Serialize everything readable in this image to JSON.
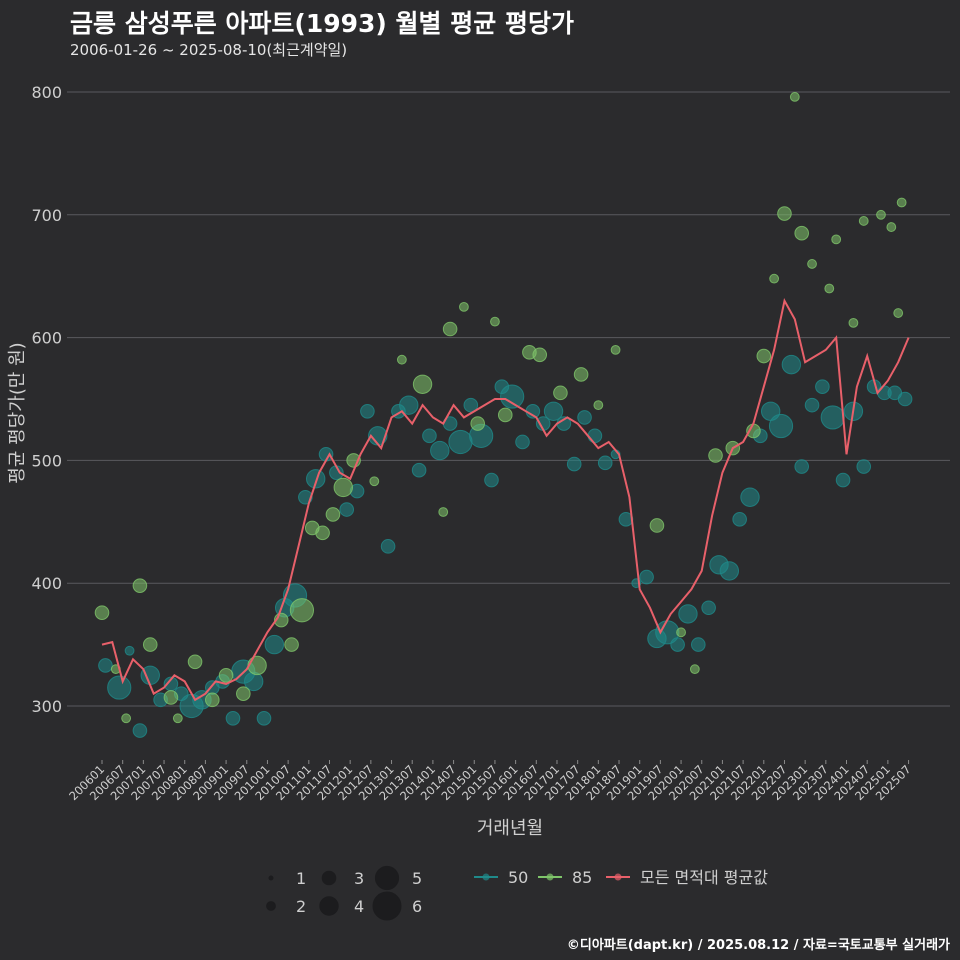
{
  "title": "금릉 삼성푸른 아파트(1993) 월별 평균 평당가",
  "subtitle": "2006-01-26 ~ 2025-08-10(최근계약일)",
  "caption": "©디아파트(dapt.kr) / 2025.08.12 / 자료=국토교통부 실거래가",
  "colors": {
    "background": "#2b2b2d",
    "grid": "#5a5a5e",
    "series_50": "#1f8a8a",
    "series_85": "#7fc56a",
    "series_avg": "#e8606a"
  },
  "chart_data": {
    "type": "scatter",
    "xlabel": "거래년월",
    "ylabel": "평균 평당가(만 원)",
    "ylim": [
      255,
      810
    ],
    "yticks": [
      300,
      400,
      500,
      600,
      700,
      800
    ],
    "xlim": [
      "2006-01",
      "2025-08"
    ],
    "xticks": [
      "200601",
      "200607",
      "200701",
      "200707",
      "200801",
      "200807",
      "200901",
      "200907",
      "201001",
      "201007",
      "201101",
      "201107",
      "201201",
      "201207",
      "201301",
      "201307",
      "201401",
      "201407",
      "201501",
      "201507",
      "201601",
      "201607",
      "201701",
      "201707",
      "201801",
      "201807",
      "201901",
      "201907",
      "202001",
      "202007",
      "202101",
      "202107",
      "202201",
      "202207",
      "202301",
      "202307",
      "202401",
      "202407",
      "202501",
      "202507"
    ],
    "grid": true,
    "legend": {
      "position": "bottom",
      "size_title": "",
      "sizes": [
        1,
        2,
        3,
        4,
        5,
        6
      ],
      "series": [
        "50",
        "85",
        "모든 면적대 평균값"
      ]
    },
    "series": [
      {
        "name": "모든 면적대 평균값",
        "type": "line",
        "x": [
          "2006-01",
          "2006-04",
          "2006-07",
          "2006-10",
          "2007-01",
          "2007-04",
          "2007-07",
          "2007-10",
          "2008-01",
          "2008-04",
          "2008-07",
          "2008-10",
          "2009-01",
          "2009-04",
          "2009-07",
          "2009-10",
          "2010-01",
          "2010-04",
          "2010-07",
          "2010-10",
          "2011-01",
          "2011-04",
          "2011-07",
          "2011-10",
          "2012-01",
          "2012-04",
          "2012-07",
          "2012-10",
          "2013-01",
          "2013-04",
          "2013-07",
          "2013-10",
          "2014-01",
          "2014-04",
          "2014-07",
          "2014-10",
          "2015-01",
          "2015-04",
          "2015-07",
          "2015-10",
          "2016-01",
          "2016-04",
          "2016-07",
          "2016-10",
          "2017-01",
          "2017-04",
          "2017-07",
          "2017-10",
          "2018-01",
          "2018-04",
          "2018-07",
          "2018-10",
          "2019-01",
          "2019-04",
          "2019-07",
          "2019-10",
          "2020-01",
          "2020-04",
          "2020-07",
          "2020-10",
          "2021-01",
          "2021-04",
          "2021-07",
          "2021-10",
          "2022-01",
          "2022-04",
          "2022-07",
          "2022-10",
          "2023-01",
          "2023-04",
          "2023-07",
          "2023-10",
          "2024-01",
          "2024-04",
          "2024-07",
          "2024-10",
          "2025-01",
          "2025-04",
          "2025-07"
        ],
        "values": [
          350,
          352,
          320,
          338,
          330,
          310,
          315,
          325,
          320,
          305,
          310,
          320,
          318,
          322,
          330,
          345,
          360,
          372,
          395,
          430,
          465,
          490,
          505,
          490,
          485,
          505,
          520,
          510,
          535,
          540,
          530,
          545,
          535,
          530,
          545,
          535,
          540,
          545,
          550,
          550,
          545,
          540,
          535,
          520,
          530,
          535,
          530,
          520,
          510,
          515,
          505,
          470,
          395,
          380,
          360,
          375,
          385,
          395,
          410,
          455,
          490,
          510,
          515,
          530,
          560,
          590,
          630,
          615,
          580,
          585,
          590,
          600,
          505,
          560,
          585,
          555,
          565,
          580,
          600
        ]
      },
      {
        "name": "50",
        "type": "scatter",
        "points": [
          {
            "x": "2006-02",
            "y": 333,
            "s": 3
          },
          {
            "x": "2006-06",
            "y": 315,
            "s": 5
          },
          {
            "x": "2006-09",
            "y": 345,
            "s": 2
          },
          {
            "x": "2006-12",
            "y": 280,
            "s": 3
          },
          {
            "x": "2007-03",
            "y": 325,
            "s": 4
          },
          {
            "x": "2007-06",
            "y": 305,
            "s": 3
          },
          {
            "x": "2007-09",
            "y": 318,
            "s": 3
          },
          {
            "x": "2007-12",
            "y": 310,
            "s": 3
          },
          {
            "x": "2008-03",
            "y": 300,
            "s": 5
          },
          {
            "x": "2008-06",
            "y": 305,
            "s": 4
          },
          {
            "x": "2008-09",
            "y": 315,
            "s": 3
          },
          {
            "x": "2008-12",
            "y": 320,
            "s": 3
          },
          {
            "x": "2009-03",
            "y": 290,
            "s": 3
          },
          {
            "x": "2009-06",
            "y": 328,
            "s": 5
          },
          {
            "x": "2009-09",
            "y": 320,
            "s": 4
          },
          {
            "x": "2009-12",
            "y": 290,
            "s": 3
          },
          {
            "x": "2010-03",
            "y": 350,
            "s": 4
          },
          {
            "x": "2010-06",
            "y": 380,
            "s": 4
          },
          {
            "x": "2010-09",
            "y": 390,
            "s": 5
          },
          {
            "x": "2010-12",
            "y": 470,
            "s": 3
          },
          {
            "x": "2011-03",
            "y": 485,
            "s": 4
          },
          {
            "x": "2011-06",
            "y": 505,
            "s": 3
          },
          {
            "x": "2011-09",
            "y": 490,
            "s": 3
          },
          {
            "x": "2011-12",
            "y": 460,
            "s": 3
          },
          {
            "x": "2012-03",
            "y": 475,
            "s": 3
          },
          {
            "x": "2012-06",
            "y": 540,
            "s": 3
          },
          {
            "x": "2012-09",
            "y": 520,
            "s": 4
          },
          {
            "x": "2012-12",
            "y": 430,
            "s": 3
          },
          {
            "x": "2013-03",
            "y": 540,
            "s": 3
          },
          {
            "x": "2013-06",
            "y": 545,
            "s": 4
          },
          {
            "x": "2013-09",
            "y": 492,
            "s": 3
          },
          {
            "x": "2013-12",
            "y": 520,
            "s": 3
          },
          {
            "x": "2014-03",
            "y": 508,
            "s": 4
          },
          {
            "x": "2014-06",
            "y": 530,
            "s": 3
          },
          {
            "x": "2014-09",
            "y": 515,
            "s": 5
          },
          {
            "x": "2014-12",
            "y": 545,
            "s": 3
          },
          {
            "x": "2015-03",
            "y": 520,
            "s": 5
          },
          {
            "x": "2015-06",
            "y": 484,
            "s": 3
          },
          {
            "x": "2015-09",
            "y": 560,
            "s": 3
          },
          {
            "x": "2015-12",
            "y": 552,
            "s": 5
          },
          {
            "x": "2016-03",
            "y": 515,
            "s": 3
          },
          {
            "x": "2016-06",
            "y": 540,
            "s": 3
          },
          {
            "x": "2016-09",
            "y": 530,
            "s": 3
          },
          {
            "x": "2016-12",
            "y": 540,
            "s": 4
          },
          {
            "x": "2017-03",
            "y": 530,
            "s": 3
          },
          {
            "x": "2017-06",
            "y": 497,
            "s": 3
          },
          {
            "x": "2017-09",
            "y": 535,
            "s": 3
          },
          {
            "x": "2017-12",
            "y": 520,
            "s": 3
          },
          {
            "x": "2018-03",
            "y": 498,
            "s": 3
          },
          {
            "x": "2018-06",
            "y": 505,
            "s": 2
          },
          {
            "x": "2018-09",
            "y": 452,
            "s": 3
          },
          {
            "x": "2018-12",
            "y": 400,
            "s": 2
          },
          {
            "x": "2019-03",
            "y": 405,
            "s": 3
          },
          {
            "x": "2019-06",
            "y": 355,
            "s": 4
          },
          {
            "x": "2019-09",
            "y": 360,
            "s": 5
          },
          {
            "x": "2019-12",
            "y": 350,
            "s": 3
          },
          {
            "x": "2020-03",
            "y": 375,
            "s": 4
          },
          {
            "x": "2020-06",
            "y": 350,
            "s": 3
          },
          {
            "x": "2020-09",
            "y": 380,
            "s": 3
          },
          {
            "x": "2020-12",
            "y": 415,
            "s": 4
          },
          {
            "x": "2021-03",
            "y": 410,
            "s": 4
          },
          {
            "x": "2021-06",
            "y": 452,
            "s": 3
          },
          {
            "x": "2021-09",
            "y": 470,
            "s": 4
          },
          {
            "x": "2021-12",
            "y": 520,
            "s": 3
          },
          {
            "x": "2022-03",
            "y": 540,
            "s": 4
          },
          {
            "x": "2022-06",
            "y": 528,
            "s": 5
          },
          {
            "x": "2022-09",
            "y": 578,
            "s": 4
          },
          {
            "x": "2022-12",
            "y": 495,
            "s": 3
          },
          {
            "x": "2023-03",
            "y": 545,
            "s": 3
          },
          {
            "x": "2023-06",
            "y": 560,
            "s": 3
          },
          {
            "x": "2023-09",
            "y": 535,
            "s": 5
          },
          {
            "x": "2023-12",
            "y": 484,
            "s": 3
          },
          {
            "x": "2024-03",
            "y": 540,
            "s": 4
          },
          {
            "x": "2024-06",
            "y": 495,
            "s": 3
          },
          {
            "x": "2024-09",
            "y": 560,
            "s": 3
          },
          {
            "x": "2024-12",
            "y": 555,
            "s": 3
          },
          {
            "x": "2025-03",
            "y": 555,
            "s": 3
          },
          {
            "x": "2025-06",
            "y": 550,
            "s": 3
          }
        ]
      },
      {
        "name": "85",
        "type": "scatter",
        "points": [
          {
            "x": "2006-01",
            "y": 376,
            "s": 3
          },
          {
            "x": "2006-05",
            "y": 330,
            "s": 2
          },
          {
            "x": "2006-08",
            "y": 290,
            "s": 2
          },
          {
            "x": "2006-12",
            "y": 398,
            "s": 3
          },
          {
            "x": "2007-03",
            "y": 350,
            "s": 3
          },
          {
            "x": "2007-09",
            "y": 307,
            "s": 3
          },
          {
            "x": "2007-11",
            "y": 290,
            "s": 2
          },
          {
            "x": "2008-04",
            "y": 336,
            "s": 3
          },
          {
            "x": "2008-09",
            "y": 305,
            "s": 3
          },
          {
            "x": "2009-01",
            "y": 325,
            "s": 3
          },
          {
            "x": "2009-06",
            "y": 310,
            "s": 3
          },
          {
            "x": "2009-10",
            "y": 333,
            "s": 4
          },
          {
            "x": "2010-05",
            "y": 370,
            "s": 3
          },
          {
            "x": "2010-08",
            "y": 350,
            "s": 3
          },
          {
            "x": "2010-11",
            "y": 378,
            "s": 5
          },
          {
            "x": "2011-02",
            "y": 445,
            "s": 3
          },
          {
            "x": "2011-05",
            "y": 441,
            "s": 3
          },
          {
            "x": "2011-08",
            "y": 456,
            "s": 3
          },
          {
            "x": "2011-11",
            "y": 478,
            "s": 4
          },
          {
            "x": "2012-02",
            "y": 500,
            "s": 3
          },
          {
            "x": "2012-08",
            "y": 483,
            "s": 2
          },
          {
            "x": "2013-04",
            "y": 582,
            "s": 2
          },
          {
            "x": "2013-10",
            "y": 562,
            "s": 4
          },
          {
            "x": "2014-04",
            "y": 458,
            "s": 2
          },
          {
            "x": "2014-06",
            "y": 607,
            "s": 3
          },
          {
            "x": "2014-10",
            "y": 625,
            "s": 2
          },
          {
            "x": "2015-02",
            "y": 530,
            "s": 3
          },
          {
            "x": "2015-07",
            "y": 613,
            "s": 2
          },
          {
            "x": "2015-10",
            "y": 537,
            "s": 3
          },
          {
            "x": "2016-05",
            "y": 588,
            "s": 3
          },
          {
            "x": "2016-08",
            "y": 586,
            "s": 3
          },
          {
            "x": "2017-02",
            "y": 555,
            "s": 3
          },
          {
            "x": "2017-08",
            "y": 570,
            "s": 3
          },
          {
            "x": "2018-01",
            "y": 545,
            "s": 2
          },
          {
            "x": "2018-06",
            "y": 590,
            "s": 2
          },
          {
            "x": "2019-06",
            "y": 447,
            "s": 3
          },
          {
            "x": "2020-01",
            "y": 360,
            "s": 2
          },
          {
            "x": "2020-05",
            "y": 330,
            "s": 2
          },
          {
            "x": "2020-11",
            "y": 504,
            "s": 3
          },
          {
            "x": "2021-04",
            "y": 510,
            "s": 3
          },
          {
            "x": "2021-10",
            "y": 524,
            "s": 3
          },
          {
            "x": "2022-01",
            "y": 585,
            "s": 3
          },
          {
            "x": "2022-04",
            "y": 648,
            "s": 2
          },
          {
            "x": "2022-07",
            "y": 701,
            "s": 3
          },
          {
            "x": "2022-10",
            "y": 796,
            "s": 2
          },
          {
            "x": "2022-12",
            "y": 685,
            "s": 3
          },
          {
            "x": "2023-03",
            "y": 660,
            "s": 2
          },
          {
            "x": "2023-08",
            "y": 640,
            "s": 2
          },
          {
            "x": "2023-10",
            "y": 680,
            "s": 2
          },
          {
            "x": "2024-03",
            "y": 612,
            "s": 2
          },
          {
            "x": "2024-06",
            "y": 695,
            "s": 2
          },
          {
            "x": "2024-11",
            "y": 700,
            "s": 2
          },
          {
            "x": "2025-02",
            "y": 690,
            "s": 2
          },
          {
            "x": "2025-05",
            "y": 710,
            "s": 2
          },
          {
            "x": "2025-04",
            "y": 620,
            "s": 2
          }
        ]
      }
    ]
  }
}
